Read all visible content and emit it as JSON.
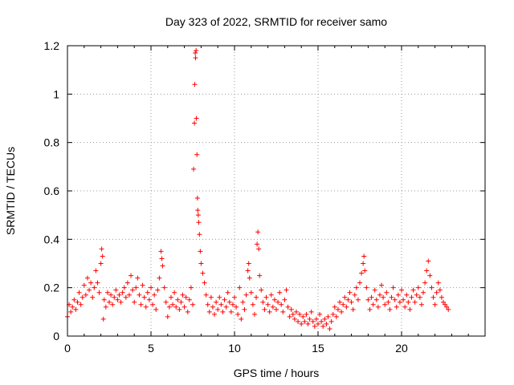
{
  "chart_data": {
    "type": "scatter",
    "title": "Day 323 of 2022, SRMTID for receiver samo",
    "xlabel": "GPS time / hours",
    "ylabel": "SRMTID / TECUs",
    "xlim": [
      0,
      25
    ],
    "ylim": [
      0,
      1.2
    ],
    "xticks": [
      0,
      5,
      10,
      15,
      20
    ],
    "xtick_labels": [
      "0",
      "5",
      "10",
      "15",
      "20"
    ],
    "yticks": [
      0,
      0.2,
      0.4,
      0.6,
      0.8,
      1.0,
      1.2
    ],
    "ytick_labels": [
      "0",
      "0.2",
      "0.4",
      "0.6",
      "0.8",
      "1",
      "1.2"
    ],
    "grid": true,
    "marker": "+",
    "marker_color": "#ff0000",
    "series": [
      {
        "name": "SRMTID",
        "points": [
          [
            0.0,
            0.08
          ],
          [
            0.1,
            0.13
          ],
          [
            0.2,
            0.1
          ],
          [
            0.3,
            0.12
          ],
          [
            0.4,
            0.15
          ],
          [
            0.5,
            0.11
          ],
          [
            0.6,
            0.14
          ],
          [
            0.7,
            0.18
          ],
          [
            0.8,
            0.13
          ],
          [
            0.9,
            0.16
          ],
          [
            1.0,
            0.21
          ],
          [
            1.1,
            0.17
          ],
          [
            1.2,
            0.24
          ],
          [
            1.3,
            0.19
          ],
          [
            1.4,
            0.22
          ],
          [
            1.5,
            0.16
          ],
          [
            1.6,
            0.2
          ],
          [
            1.7,
            0.27
          ],
          [
            1.8,
            0.22
          ],
          [
            1.9,
            0.18
          ],
          [
            2.0,
            0.3
          ],
          [
            2.05,
            0.36
          ],
          [
            2.1,
            0.33
          ],
          [
            2.15,
            0.07
          ],
          [
            2.2,
            0.15
          ],
          [
            2.3,
            0.12
          ],
          [
            2.4,
            0.18
          ],
          [
            2.5,
            0.14
          ],
          [
            2.6,
            0.17
          ],
          [
            2.7,
            0.13
          ],
          [
            2.8,
            0.16
          ],
          [
            2.9,
            0.19
          ],
          [
            3.0,
            0.15
          ],
          [
            3.1,
            0.17
          ],
          [
            3.2,
            0.14
          ],
          [
            3.3,
            0.18
          ],
          [
            3.4,
            0.2
          ],
          [
            3.5,
            0.16
          ],
          [
            3.6,
            0.22
          ],
          [
            3.7,
            0.17
          ],
          [
            3.8,
            0.25
          ],
          [
            3.9,
            0.19
          ],
          [
            4.0,
            0.14
          ],
          [
            4.1,
            0.2
          ],
          [
            4.2,
            0.24
          ],
          [
            4.3,
            0.17
          ],
          [
            4.4,
            0.13
          ],
          [
            4.5,
            0.21
          ],
          [
            4.6,
            0.16
          ],
          [
            4.7,
            0.12
          ],
          [
            4.8,
            0.18
          ],
          [
            4.9,
            0.15
          ],
          [
            5.0,
            0.2
          ],
          [
            5.1,
            0.13
          ],
          [
            5.2,
            0.17
          ],
          [
            5.3,
            0.11
          ],
          [
            5.4,
            0.19
          ],
          [
            5.5,
            0.24
          ],
          [
            5.6,
            0.35
          ],
          [
            5.65,
            0.32
          ],
          [
            5.7,
            0.29
          ],
          [
            5.8,
            0.2
          ],
          [
            5.9,
            0.14
          ],
          [
            6.0,
            0.08
          ],
          [
            6.1,
            0.12
          ],
          [
            6.2,
            0.16
          ],
          [
            6.3,
            0.13
          ],
          [
            6.4,
            0.18
          ],
          [
            6.5,
            0.12
          ],
          [
            6.6,
            0.15
          ],
          [
            6.7,
            0.11
          ],
          [
            6.8,
            0.14
          ],
          [
            6.9,
            0.17
          ],
          [
            7.0,
            0.12
          ],
          [
            7.1,
            0.16
          ],
          [
            7.2,
            0.1
          ],
          [
            7.3,
            0.15
          ],
          [
            7.4,
            0.2
          ],
          [
            7.5,
            0.13
          ],
          [
            7.55,
            0.69
          ],
          [
            7.6,
            0.88
          ],
          [
            7.62,
            1.04
          ],
          [
            7.65,
            1.17
          ],
          [
            7.67,
            1.15
          ],
          [
            7.7,
            1.18
          ],
          [
            7.72,
            0.9
          ],
          [
            7.75,
            0.75
          ],
          [
            7.78,
            0.57
          ],
          [
            7.8,
            0.52
          ],
          [
            7.83,
            0.5
          ],
          [
            7.86,
            0.47
          ],
          [
            7.9,
            0.42
          ],
          [
            7.95,
            0.35
          ],
          [
            8.0,
            0.3
          ],
          [
            8.1,
            0.26
          ],
          [
            8.2,
            0.22
          ],
          [
            8.3,
            0.17
          ],
          [
            8.4,
            0.13
          ],
          [
            8.5,
            0.1
          ],
          [
            8.6,
            0.16
          ],
          [
            8.7,
            0.12
          ],
          [
            8.8,
            0.09
          ],
          [
            8.9,
            0.14
          ],
          [
            9.0,
            0.11
          ],
          [
            9.1,
            0.16
          ],
          [
            9.2,
            0.13
          ],
          [
            9.3,
            0.1
          ],
          [
            9.4,
            0.15
          ],
          [
            9.5,
            0.12
          ],
          [
            9.6,
            0.18
          ],
          [
            9.7,
            0.14
          ],
          [
            9.8,
            0.1
          ],
          [
            9.9,
            0.13
          ],
          [
            10.0,
            0.16
          ],
          [
            10.1,
            0.12
          ],
          [
            10.2,
            0.09
          ],
          [
            10.3,
            0.2
          ],
          [
            10.4,
            0.07
          ],
          [
            10.5,
            0.14
          ],
          [
            10.6,
            0.11
          ],
          [
            10.7,
            0.17
          ],
          [
            10.8,
            0.27
          ],
          [
            10.85,
            0.3
          ],
          [
            10.9,
            0.24
          ],
          [
            11.0,
            0.18
          ],
          [
            11.1,
            0.13
          ],
          [
            11.2,
            0.09
          ],
          [
            11.3,
            0.16
          ],
          [
            11.35,
            0.38
          ],
          [
            11.4,
            0.43
          ],
          [
            11.45,
            0.36
          ],
          [
            11.5,
            0.25
          ],
          [
            11.6,
            0.19
          ],
          [
            11.7,
            0.14
          ],
          [
            11.8,
            0.11
          ],
          [
            11.9,
            0.16
          ],
          [
            12.0,
            0.13
          ],
          [
            12.1,
            0.1
          ],
          [
            12.2,
            0.17
          ],
          [
            12.3,
            0.12
          ],
          [
            12.4,
            0.15
          ],
          [
            12.5,
            0.11
          ],
          [
            12.6,
            0.14
          ],
          [
            12.7,
            0.18
          ],
          [
            12.8,
            0.13
          ],
          [
            12.9,
            0.1
          ],
          [
            13.0,
            0.15
          ],
          [
            13.1,
            0.19
          ],
          [
            13.2,
            0.12
          ],
          [
            13.3,
            0.08
          ],
          [
            13.4,
            0.11
          ],
          [
            13.5,
            0.09
          ],
          [
            13.6,
            0.07
          ],
          [
            13.7,
            0.1
          ],
          [
            13.8,
            0.06
          ],
          [
            13.9,
            0.09
          ],
          [
            14.0,
            0.05
          ],
          [
            14.1,
            0.08
          ],
          [
            14.2,
            0.06
          ],
          [
            14.3,
            0.09
          ],
          [
            14.4,
            0.05
          ],
          [
            14.5,
            0.07
          ],
          [
            14.6,
            0.1
          ],
          [
            14.7,
            0.06
          ],
          [
            14.8,
            0.04
          ],
          [
            14.9,
            0.07
          ],
          [
            15.0,
            0.05
          ],
          [
            15.1,
            0.09
          ],
          [
            15.2,
            0.06
          ],
          [
            15.3,
            0.04
          ],
          [
            15.4,
            0.07
          ],
          [
            15.5,
            0.05
          ],
          [
            15.6,
            0.08
          ],
          [
            15.7,
            0.03
          ],
          [
            15.8,
            0.06
          ],
          [
            15.9,
            0.09
          ],
          [
            16.0,
            0.12
          ],
          [
            16.1,
            0.08
          ],
          [
            16.2,
            0.11
          ],
          [
            16.3,
            0.14
          ],
          [
            16.4,
            0.1
          ],
          [
            16.5,
            0.13
          ],
          [
            16.6,
            0.16
          ],
          [
            16.7,
            0.12
          ],
          [
            16.8,
            0.15
          ],
          [
            16.9,
            0.18
          ],
          [
            17.0,
            0.14
          ],
          [
            17.1,
            0.11
          ],
          [
            17.2,
            0.17
          ],
          [
            17.3,
            0.2
          ],
          [
            17.4,
            0.15
          ],
          [
            17.5,
            0.22
          ],
          [
            17.6,
            0.26
          ],
          [
            17.7,
            0.3
          ],
          [
            17.75,
            0.33
          ],
          [
            17.8,
            0.27
          ],
          [
            17.9,
            0.2
          ],
          [
            18.0,
            0.15
          ],
          [
            18.1,
            0.11
          ],
          [
            18.2,
            0.16
          ],
          [
            18.3,
            0.13
          ],
          [
            18.4,
            0.19
          ],
          [
            18.5,
            0.15
          ],
          [
            18.6,
            0.12
          ],
          [
            18.7,
            0.17
          ],
          [
            18.8,
            0.21
          ],
          [
            18.9,
            0.16
          ],
          [
            19.0,
            0.13
          ],
          [
            19.1,
            0.18
          ],
          [
            19.2,
            0.14
          ],
          [
            19.3,
            0.11
          ],
          [
            19.4,
            0.16
          ],
          [
            19.5,
            0.2
          ],
          [
            19.6,
            0.15
          ],
          [
            19.7,
            0.12
          ],
          [
            19.8,
            0.17
          ],
          [
            19.9,
            0.14
          ],
          [
            20.0,
            0.19
          ],
          [
            20.1,
            0.15
          ],
          [
            20.2,
            0.12
          ],
          [
            20.3,
            0.17
          ],
          [
            20.4,
            0.14
          ],
          [
            20.5,
            0.11
          ],
          [
            20.6,
            0.16
          ],
          [
            20.7,
            0.19
          ],
          [
            20.8,
            0.14
          ],
          [
            20.9,
            0.17
          ],
          [
            21.0,
            0.2
          ],
          [
            21.1,
            0.16
          ],
          [
            21.2,
            0.13
          ],
          [
            21.3,
            0.18
          ],
          [
            21.4,
            0.22
          ],
          [
            21.5,
            0.27
          ],
          [
            21.6,
            0.31
          ],
          [
            21.7,
            0.25
          ],
          [
            21.8,
            0.2
          ],
          [
            21.9,
            0.16
          ],
          [
            22.0,
            0.13
          ],
          [
            22.1,
            0.18
          ],
          [
            22.2,
            0.22
          ],
          [
            22.3,
            0.19
          ],
          [
            22.4,
            0.16
          ],
          [
            22.5,
            0.14
          ],
          [
            22.6,
            0.13
          ],
          [
            22.7,
            0.12
          ],
          [
            22.8,
            0.11
          ]
        ]
      }
    ]
  }
}
